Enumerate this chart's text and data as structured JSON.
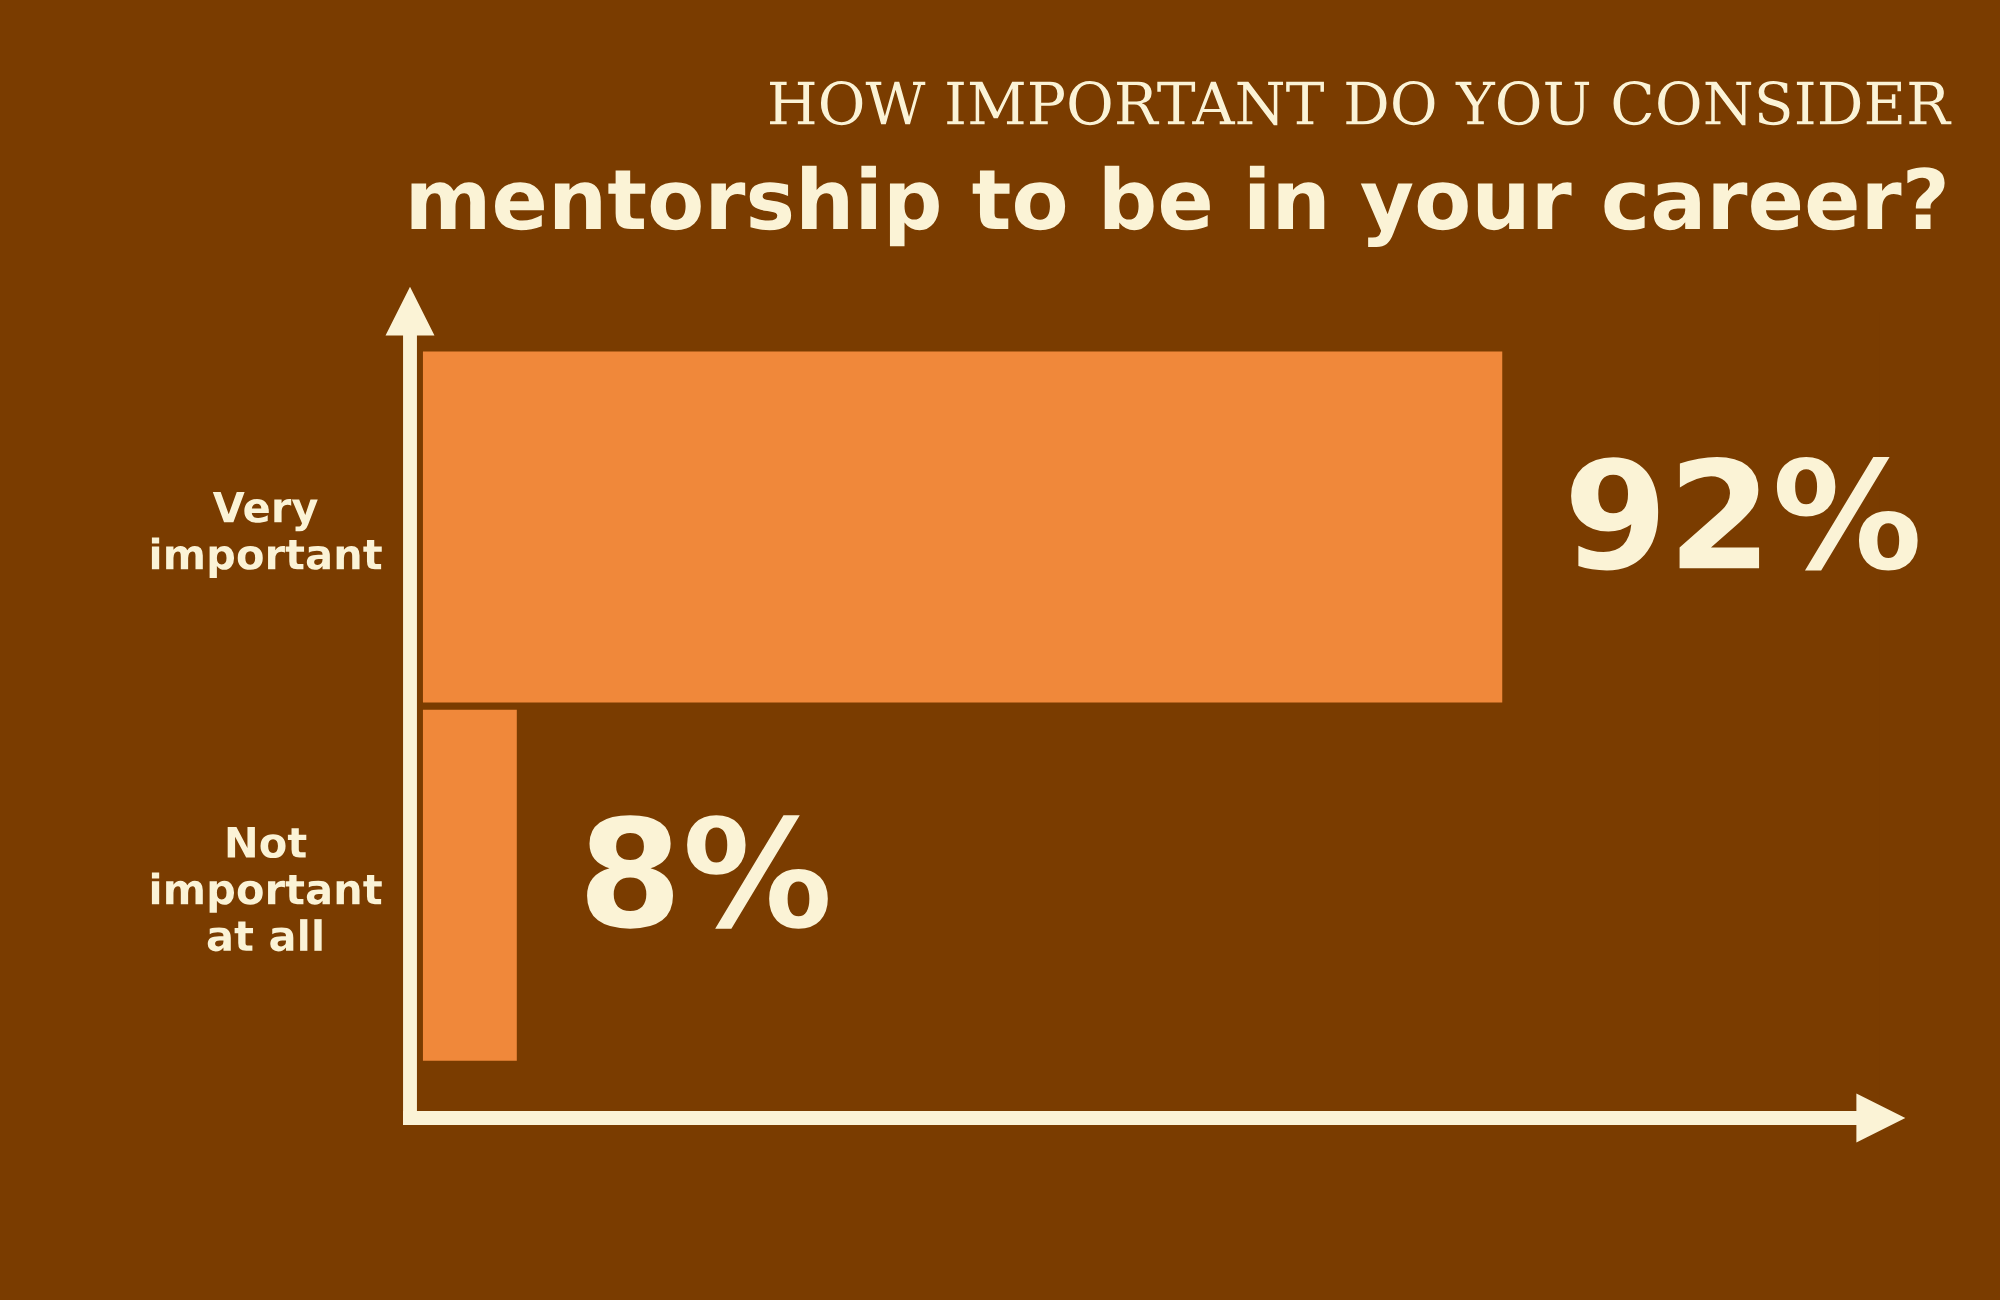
{
  "chart_data": {
    "type": "bar",
    "orientation": "horizontal",
    "title": "HOW IMPORTANT DO YOU CONSIDER",
    "subtitle": "mentorship to be in your career?",
    "categories": [
      "Very\nimportant",
      "Not\nimportant\nat all"
    ],
    "values": [
      92,
      8
    ],
    "color": "#f0883a",
    "value_labels": [
      "92%",
      "8%"
    ],
    "tick_labels": "y",
    "grid": false,
    "legend": false
  }
}
